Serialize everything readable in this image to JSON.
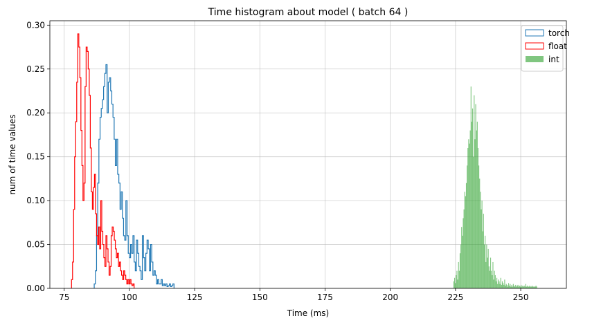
{
  "chart_data": {
    "type": "histogram",
    "title": "Time histogram about model ( batch 64 )",
    "xlabel": "Time (ms)",
    "ylabel": "num of time values",
    "xlim": [
      69.5,
      267.5
    ],
    "ylim": [
      0,
      0.305
    ],
    "x_ticks": [
      75,
      100,
      125,
      150,
      175,
      200,
      225,
      250
    ],
    "y_ticks": [
      0.0,
      0.05,
      0.1,
      0.15,
      0.2,
      0.25,
      0.3
    ],
    "grid": true,
    "legend_position": "top-right",
    "series": [
      {
        "name": "torch",
        "style": "step",
        "color": "#1f77b4",
        "bin_width": 0.45,
        "start": 86.5,
        "values": [
          0.005,
          0.02,
          0.06,
          0.12,
          0.17,
          0.195,
          0.205,
          0.215,
          0.23,
          0.245,
          0.255,
          0.2,
          0.235,
          0.24,
          0.225,
          0.21,
          0.195,
          0.17,
          0.14,
          0.17,
          0.13,
          0.12,
          0.09,
          0.11,
          0.08,
          0.06,
          0.055,
          0.1,
          0.06,
          0.04,
          0.035,
          0.05,
          0.04,
          0.06,
          0.03,
          0.02,
          0.055,
          0.04,
          0.025,
          0.02,
          0.01,
          0.06,
          0.035,
          0.02,
          0.04,
          0.055,
          0.045,
          0.02,
          0.05,
          0.03,
          0.015,
          0.02,
          0.015,
          0.005,
          0.01,
          0.005,
          0.005,
          0.01,
          0.003,
          0.005,
          0.003,
          0.005,
          0.002,
          0.003,
          0.005,
          0.002,
          0.003,
          0.005
        ]
      },
      {
        "name": "float",
        "style": "step",
        "color": "#ff0000",
        "bin_width": 0.4,
        "start": 77.8,
        "values": [
          0.01,
          0.03,
          0.09,
          0.15,
          0.19,
          0.235,
          0.29,
          0.275,
          0.24,
          0.18,
          0.14,
          0.1,
          0.12,
          0.23,
          0.275,
          0.27,
          0.25,
          0.22,
          0.16,
          0.11,
          0.09,
          0.115,
          0.13,
          0.085,
          0.06,
          0.05,
          0.07,
          0.045,
          0.1,
          0.065,
          0.05,
          0.035,
          0.025,
          0.06,
          0.045,
          0.03,
          0.015,
          0.025,
          0.06,
          0.07,
          0.065,
          0.055,
          0.045,
          0.035,
          0.04,
          0.025,
          0.03,
          0.02,
          0.015,
          0.01,
          0.02,
          0.015,
          0.01,
          0.005,
          0.01,
          0.005,
          0.01,
          0.005,
          0.003,
          0.005
        ]
      },
      {
        "name": "int",
        "style": "filled",
        "color": "#2ca02c",
        "bin_width": 0.3,
        "start": 224.2,
        "values": [
          0.008,
          0.012,
          0.006,
          0.015,
          0.02,
          0.01,
          0.03,
          0.02,
          0.04,
          0.05,
          0.07,
          0.06,
          0.08,
          0.09,
          0.11,
          0.105,
          0.12,
          0.14,
          0.16,
          0.17,
          0.165,
          0.18,
          0.23,
          0.19,
          0.205,
          0.15,
          0.22,
          0.17,
          0.21,
          0.18,
          0.19,
          0.16,
          0.14,
          0.125,
          0.11,
          0.09,
          0.1,
          0.065,
          0.085,
          0.05,
          0.06,
          0.03,
          0.05,
          0.035,
          0.045,
          0.025,
          0.02,
          0.035,
          0.02,
          0.015,
          0.03,
          0.01,
          0.02,
          0.015,
          0.008,
          0.012,
          0.005,
          0.01,
          0.008,
          0.005,
          0.012,
          0.004,
          0.008,
          0.006,
          0.004,
          0.01,
          0.003,
          0.005,
          0.004,
          0.002,
          0.006,
          0.003,
          0.005,
          0.002,
          0.004,
          0.002,
          0.005,
          0.003,
          0.002,
          0.004,
          0.002,
          0.003,
          0.004,
          0.002,
          0.003,
          0.002,
          0.004,
          0.002,
          0.003,
          0.002,
          0.003,
          0.002,
          0.005,
          0.002,
          0.003,
          0.002,
          0.002,
          0.003,
          0.002,
          0.002,
          0.003,
          0.002,
          0.002,
          0.002,
          0.002,
          0.003,
          0.002
        ]
      }
    ]
  }
}
